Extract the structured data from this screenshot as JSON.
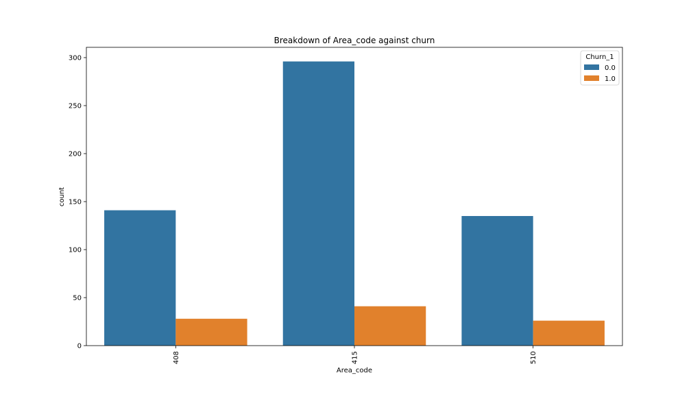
{
  "chart_data": {
    "type": "bar",
    "title": "Breakdown of Area_code against churn",
    "xlabel": "Area_code",
    "ylabel": "count",
    "categories": [
      "408",
      "415",
      "510"
    ],
    "series": [
      {
        "name": "0.0",
        "values": [
          141,
          296,
          135
        ],
        "color": "#3274a1"
      },
      {
        "name": "1.0",
        "values": [
          28,
          41,
          26
        ],
        "color": "#e1812c"
      }
    ],
    "ylim": [
      0,
      310
    ],
    "yticks": [
      0,
      50,
      100,
      150,
      200,
      250,
      300
    ],
    "grid": false,
    "legend": {
      "title": "Churn_1",
      "placement": "top-right"
    }
  }
}
